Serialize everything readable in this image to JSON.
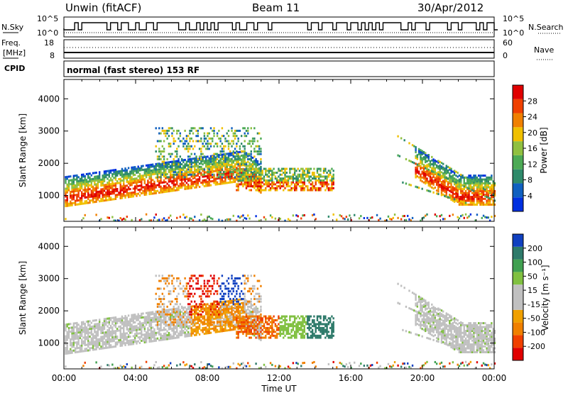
{
  "header": {
    "station": "Unwin (fitACF)",
    "beam": "Beam 11",
    "date": "30/Apr/2012"
  },
  "top_panels": {
    "nsky_label": "N.Sky",
    "nsky_ticks": [
      "10^5",
      "10^0"
    ],
    "nsearch_label": "N.Search",
    "nsearch_ticks": [
      "10^5",
      "10^0"
    ],
    "freq_label": "Freq.",
    "freq_unit": "[MHz]",
    "freq_ticks": [
      "18",
      "8"
    ],
    "nave_label": "Nave",
    "nave_ticks": [
      "60",
      "0"
    ],
    "cpid_label": "CPID",
    "cpid_text": "normal (fast stereo) 153 RF"
  },
  "colors": {
    "power": [
      "#0030e0",
      "#1060c0",
      "#2e8a6a",
      "#4caa55",
      "#90c040",
      "#f0c000",
      "#f08000",
      "#f04000",
      "#e00000"
    ],
    "velocity": [
      "#e00000",
      "#f04000",
      "#f08000",
      "#f0a000",
      "#c0c0c0",
      "#c0c0c0",
      "#80c040",
      "#40a050",
      "#2e7a6a",
      "#1040c0"
    ]
  },
  "chart_data": [
    {
      "type": "heatmap",
      "name": "power",
      "ylabel": "Slant Range [km]",
      "y_ticks": [
        1000,
        2000,
        3000,
        4000
      ],
      "ylim": [
        200,
        4600
      ],
      "xlim_hours": [
        0,
        24
      ],
      "colorbar": {
        "label": "Power [dB]",
        "ticks": [
          4,
          8,
          12,
          16,
          20,
          24,
          28
        ],
        "range": [
          0,
          30
        ]
      }
    },
    {
      "type": "heatmap",
      "name": "velocity",
      "ylabel": "Slant Range [km]",
      "y_ticks": [
        1000,
        2000,
        3000,
        4000
      ],
      "ylim": [
        200,
        4600
      ],
      "xlim_hours": [
        0,
        24
      ],
      "colorbar": {
        "label": "Velocity [m s⁻¹]",
        "ticks": [
          -200,
          -100,
          -50,
          -15,
          15,
          50,
          100,
          200
        ]
      }
    }
  ],
  "x_axis": {
    "label": "Time UT",
    "ticks": [
      "00:00",
      "04:00",
      "08:00",
      "12:00",
      "16:00",
      "20:00",
      "00:00"
    ]
  }
}
